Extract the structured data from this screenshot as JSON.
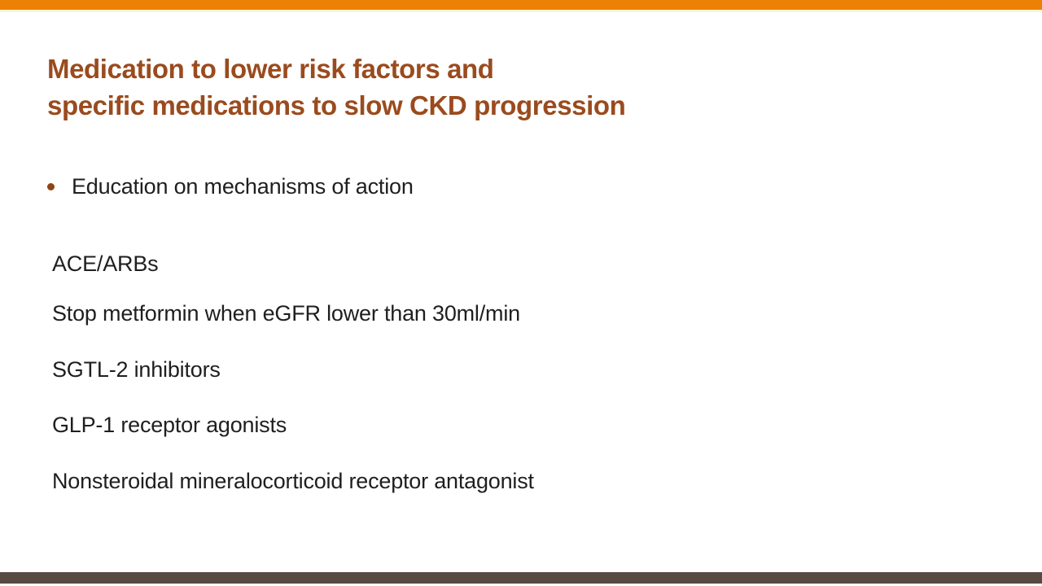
{
  "slide": {
    "title_line1": "Medication to lower risk factors and",
    "title_line2": "specific medications to slow CKD progression",
    "bullet_item": "Education on mechanisms of action",
    "medications": [
      "ACE/ARBs",
      "Stop metformin when eGFR lower than 30ml/min",
      "SGTL-2 inhibitors",
      "GLP-1 receptor agonists",
      "Nonsteroidal mineralocorticoid receptor antagonist"
    ],
    "colors": {
      "top_bar": "#EC8106",
      "top_bar_underline": "#FCF6D4",
      "title_text": "#9A4B1E",
      "bullet_dot": "#8E4513",
      "body_text": "#1F1F1F",
      "bottom_bar": "#564A42"
    }
  }
}
